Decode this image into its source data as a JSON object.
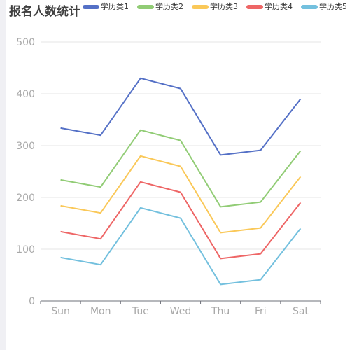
{
  "chart_data": {
    "type": "line",
    "title": "报名人数统计",
    "categories": [
      "Sun",
      "Mon",
      "Tue",
      "Wed",
      "Thu",
      "Fri",
      "Sat"
    ],
    "series": [
      {
        "name": "学历类1",
        "color": "#5470c6",
        "values": [
          334,
          320,
          430,
          410,
          282,
          291,
          390
        ]
      },
      {
        "name": "学历类2",
        "color": "#91cc75",
        "values": [
          234,
          220,
          330,
          310,
          182,
          191,
          290
        ]
      },
      {
        "name": "学历类3",
        "color": "#fac858",
        "values": [
          184,
          170,
          280,
          260,
          132,
          141,
          240
        ]
      },
      {
        "name": "学历类4",
        "color": "#ee6666",
        "values": [
          134,
          120,
          230,
          210,
          82,
          91,
          190
        ]
      },
      {
        "name": "学历类5",
        "color": "#73c0de",
        "values": [
          84,
          70,
          180,
          160,
          32,
          41,
          140
        ]
      }
    ],
    "yticks": [
      0,
      100,
      200,
      300,
      400,
      500
    ],
    "ylim": [
      0,
      500
    ],
    "xlabel": "",
    "ylabel": "",
    "grid": true,
    "legend_position": "top"
  }
}
